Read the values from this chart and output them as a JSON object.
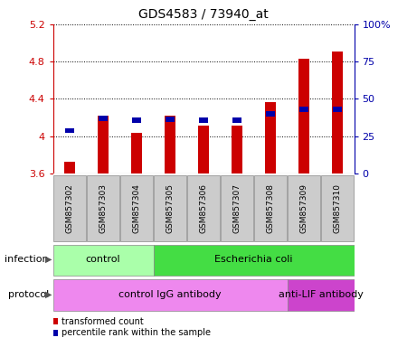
{
  "title": "GDS4583 / 73940_at",
  "samples": [
    "GSM857302",
    "GSM857303",
    "GSM857304",
    "GSM857305",
    "GSM857306",
    "GSM857307",
    "GSM857308",
    "GSM857309",
    "GSM857310"
  ],
  "red_values": [
    3.73,
    4.22,
    4.04,
    4.22,
    4.11,
    4.11,
    4.37,
    4.83,
    4.91
  ],
  "blue_values": [
    4.06,
    4.19,
    4.17,
    4.18,
    4.17,
    4.17,
    4.24,
    4.29,
    4.29
  ],
  "ylim_left": [
    3.6,
    5.2
  ],
  "ylim_right": [
    0,
    100
  ],
  "yticks_left": [
    3.6,
    4.0,
    4.4,
    4.8,
    5.2
  ],
  "ytick_labels_left": [
    "3.6",
    "4",
    "4.4",
    "4.8",
    "5.2"
  ],
  "yticks_right": [
    0,
    25,
    50,
    75,
    100
  ],
  "ytick_labels_right": [
    "0",
    "25",
    "50",
    "75",
    "100%"
  ],
  "bar_width": 0.35,
  "blue_bar_width": 0.28,
  "blue_bar_height": 0.055,
  "red_color": "#CC0000",
  "blue_color": "#0000AA",
  "infection_groups": [
    {
      "label": "control",
      "start": 0,
      "end": 3,
      "color": "#AAFFAA"
    },
    {
      "label": "Escherichia coli",
      "start": 3,
      "end": 9,
      "color": "#44DD44"
    }
  ],
  "protocol_groups": [
    {
      "label": "control IgG antibody",
      "start": 0,
      "end": 7,
      "color": "#EE88EE"
    },
    {
      "label": "anti-LIF antibody",
      "start": 7,
      "end": 9,
      "color": "#CC44CC"
    }
  ],
  "legend_items": [
    {
      "color": "#CC0000",
      "label": "transformed count"
    },
    {
      "color": "#0000AA",
      "label": "percentile rank within the sample"
    }
  ],
  "sample_box_color": "#CCCCCC",
  "sample_box_edge": "#888888",
  "left_label_color": "#555555"
}
